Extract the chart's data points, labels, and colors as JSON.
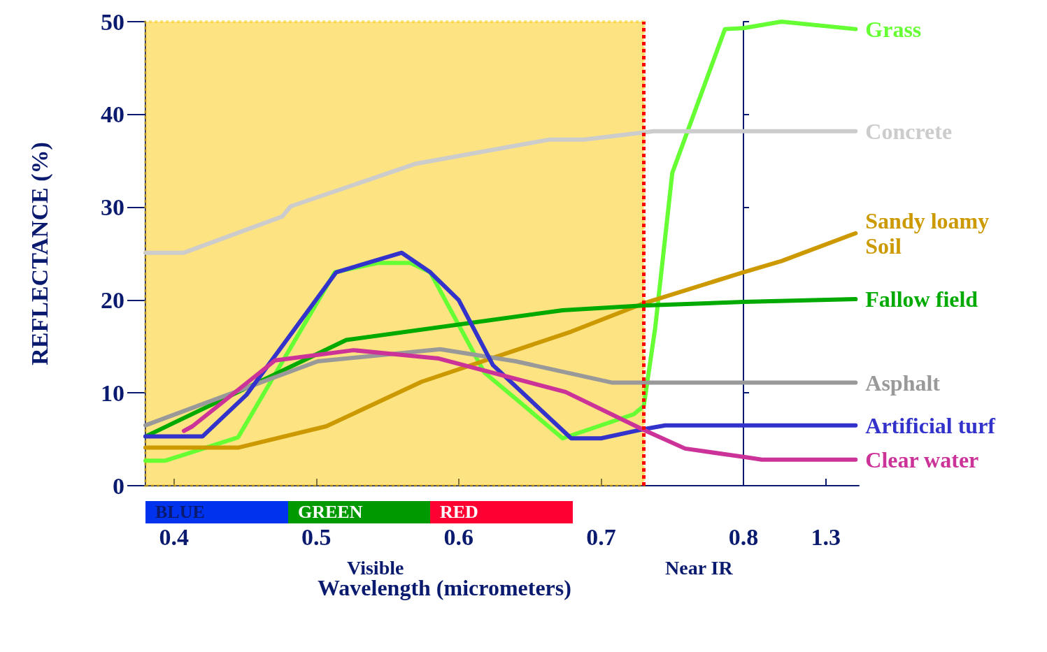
{
  "chart_data": [
    {
      "type": "line",
      "xlabel": "Wavelength (micrometers)",
      "ylabel": "REFLECTANCE (%)",
      "xlim": [
        0.38,
        0.8
      ],
      "xticks": [
        0.4,
        0.5,
        0.6,
        0.7
      ],
      "ylim": [
        0,
        50
      ],
      "yticks": [
        0,
        10,
        20,
        30,
        40,
        50
      ],
      "grid": false,
      "marker": "none",
      "line_style": "solid",
      "annotations": [
        "Visible",
        "Near IR",
        "BLUE",
        "GREEN",
        "RED"
      ],
      "bands": [
        {
          "axis": "x",
          "from": 0.38,
          "to": 0.73,
          "color": "#fbc705"
        }
      ],
      "ref_lines": [
        {
          "axis": "x",
          "value": 0.73,
          "color": "#ff0000",
          "line_style": "dotted"
        }
      ],
      "series": [
        {
          "color": "#66ff33",
          "x": [
            0.38,
            0.394,
            0.445,
            0.513,
            0.543,
            0.566,
            0.58,
            0.618,
            0.646,
            0.673,
            0.723,
            0.73,
            0.738,
            0.75,
            0.787,
            0.8
          ],
          "values": [
            2.7,
            2.7,
            5.2,
            23.0,
            24.0,
            24.0,
            23.0,
            12.2,
            8.6,
            5.1,
            7.7,
            8.6,
            17.0,
            33.7,
            49.2,
            49.3
          ]
        },
        {
          "color": "#cccccc",
          "x": [
            0.38,
            0.407,
            0.476,
            0.482,
            0.57,
            0.664,
            0.688,
            0.737,
            0.8
          ],
          "values": [
            25.1,
            25.1,
            29,
            30.1,
            34.7,
            37.3,
            37.3,
            38.2,
            38.2
          ]
        },
        {
          "color": "#cc9900",
          "x": [
            0.38,
            0.445,
            0.507,
            0.574,
            0.679,
            0.729,
            0.8
          ],
          "values": [
            4.1,
            4.1,
            6.4,
            11.2,
            16.6,
            19.6,
            23.0
          ]
        },
        {
          "color": "#00aa00",
          "x": [
            0.38,
            0.521,
            0.673,
            0.729,
            0.8
          ],
          "values": [
            5.3,
            15.7,
            18.9,
            19.4,
            19.8
          ]
        },
        {
          "color": "#999999",
          "x": [
            0.38,
            0.501,
            0.587,
            0.64,
            0.708,
            0.8
          ],
          "values": [
            6.5,
            13.4,
            14.7,
            13.4,
            11.1,
            11.1
          ]
        },
        {
          "color": "#3333cc",
          "x": [
            0.38,
            0.42,
            0.451,
            0.514,
            0.56,
            0.58,
            0.6,
            0.624,
            0.679,
            0.7,
            0.727,
            0.745,
            0.8
          ],
          "values": [
            5.3,
            5.3,
            9.8,
            23.0,
            25.1,
            23.0,
            20.0,
            13.0,
            5.1,
            5.1,
            6.0,
            6.5,
            6.5
          ]
        },
        {
          "color": "#cc3399",
          "x": [
            0.407,
            0.413,
            0.471,
            0.526,
            0.586,
            0.675,
            0.73,
            0.759,
            0.8
          ],
          "values": [
            5.9,
            6.4,
            13.5,
            14.6,
            13.7,
            10.1,
            6.0,
            4.0,
            3.1
          ]
        }
      ]
    },
    {
      "type": "line",
      "xlim": [
        0.8,
        1.5
      ],
      "xticks": [
        0.8,
        1.3
      ],
      "ylim": [
        0,
        50
      ],
      "yticks": [
        0,
        10,
        20,
        30,
        40,
        50
      ],
      "tick_labels": "x",
      "grid": false,
      "marker": "none",
      "line_style": "solid",
      "series": [
        {
          "name": "Grass",
          "color": "#66ff33",
          "x": [
            0.8,
            1.03,
            1.48
          ],
          "values": [
            49.3,
            50,
            49.2
          ]
        },
        {
          "name": "Concrete",
          "color": "#cccccc",
          "x": [
            0.8,
            1.48
          ],
          "values": [
            38.2,
            38.2
          ]
        },
        {
          "name": "Sandy loamy Soil",
          "color": "#cc9900",
          "x": [
            0.8,
            1.03,
            1.48
          ],
          "values": [
            23.0,
            24.2,
            27.2
          ]
        },
        {
          "name": "Fallow field",
          "color": "#00aa00",
          "x": [
            0.8,
            1.48
          ],
          "values": [
            19.8,
            20.1
          ]
        },
        {
          "name": "Asphalt",
          "color": "#999999",
          "x": [
            0.8,
            1.48
          ],
          "values": [
            11.1,
            11.1
          ]
        },
        {
          "name": "Artificial turf",
          "color": "#3333cc",
          "x": [
            0.8,
            1.48
          ],
          "values": [
            6.5,
            6.5
          ]
        },
        {
          "name": "Clear water",
          "color": "#cc3399",
          "x": [
            0.8,
            0.912,
            1.48
          ],
          "values": [
            3.1,
            2.8,
            2.8
          ]
        }
      ]
    }
  ]
}
